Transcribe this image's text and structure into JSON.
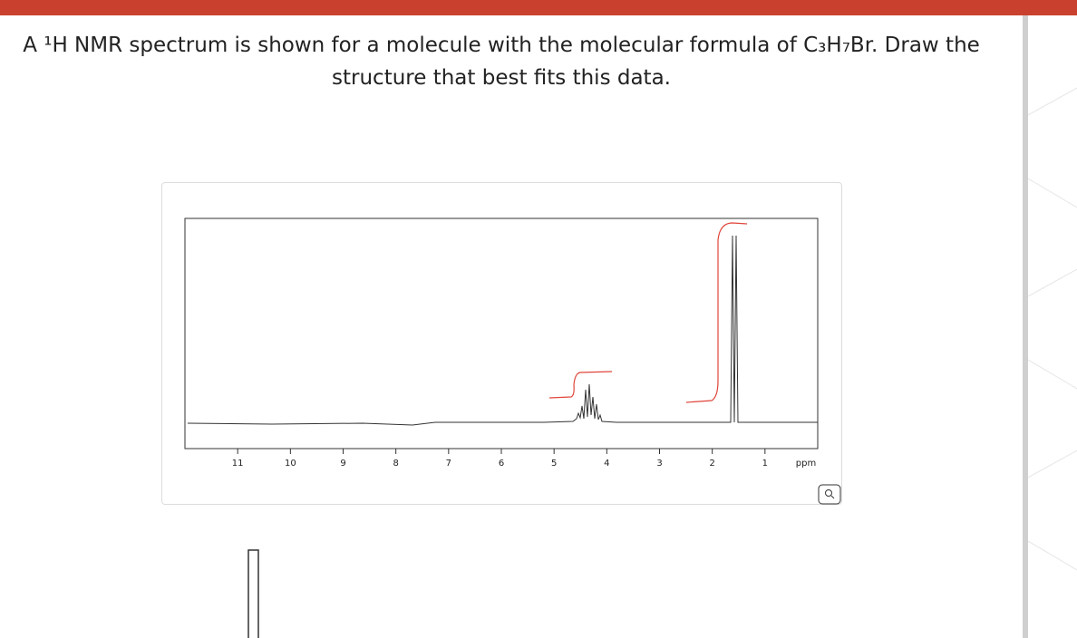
{
  "question": {
    "text": "A ¹H NMR spectrum is shown for a molecule with the molecular formula of C₃H₇Br. Draw the structure that best fits this data."
  },
  "spectrum": {
    "xlim": [
      12,
      0
    ],
    "xticks": [
      11,
      10,
      9,
      8,
      7,
      6,
      5,
      4,
      3,
      2,
      1
    ],
    "unit": "ppm"
  }
}
